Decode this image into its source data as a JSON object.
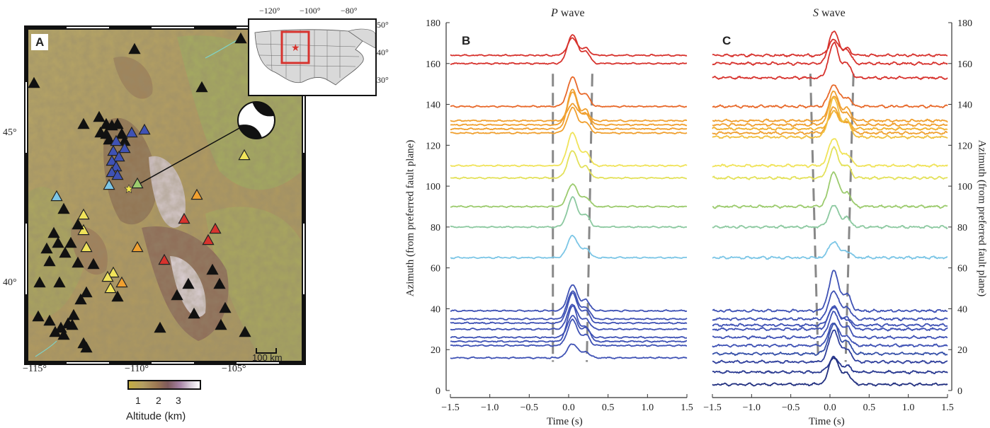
{
  "panel_a": {
    "letter": "A",
    "lon_ticks": [
      "−115°",
      "−110°",
      "−105°"
    ],
    "lat_ticks": [
      "45°",
      "40°"
    ],
    "scale_label": "100 km",
    "colorbar_ticks": [
      "1",
      "2",
      "3"
    ],
    "colorbar_label": "Altitude (km)",
    "colors": {
      "blue": "#3f52b5",
      "cyan": "#7cc6e6",
      "green": "#9ccb6e",
      "yellow": "#f0e35a",
      "orange": "#f0a030",
      "red": "#d7332e",
      "black": "#111111"
    }
  },
  "inset": {
    "lon_ticks": [
      "−120°",
      "−100°",
      "−80°"
    ],
    "lat_ticks": [
      "50°",
      "40°",
      "30°"
    ]
  },
  "panel_b": {
    "letter": "B",
    "title_italic": "P",
    "title_rest": " wave"
  },
  "panel_c": {
    "letter": "C",
    "title_italic": "S",
    "title_rest": " wave"
  },
  "y_axis_label": "Azimuth (from preferred fault plane)",
  "x_axis_label": "Time (s)",
  "chart_data": [
    {
      "type": "line",
      "title": "P wave",
      "xlabel": "Time (s)",
      "ylabel": "Azimuth (from preferred fault plane)",
      "xlim": [
        -1.5,
        1.5
      ],
      "ylim": [
        0,
        180
      ],
      "xticks": [
        "−1.5",
        "−1.0",
        "−0.5",
        "0.0",
        "0.5",
        "1.0",
        "1.5"
      ],
      "yticks": [
        "0",
        "20",
        "40",
        "60",
        "80",
        "100",
        "120",
        "140",
        "160",
        "180"
      ],
      "pulse_center_s": 0.05,
      "dashed_boundaries": {
        "left_top": -0.2,
        "left_bottom": -0.2,
        "right_top": 0.3,
        "right_bottom": 0.23
      },
      "trace_baselines": [
        164,
        160,
        139,
        132,
        130,
        128,
        126,
        110,
        104,
        90,
        80,
        65,
        39,
        35,
        33,
        30,
        26,
        24,
        22,
        16
      ],
      "trace_colors": [
        "#d7332e",
        "#d7332e",
        "#e8692a",
        "#f0a030",
        "#f0a030",
        "#f0a030",
        "#f0a030",
        "#f0e35a",
        "#e3e15a",
        "#9ccb6e",
        "#8cc9a0",
        "#7cc6e6",
        "#3f52b5",
        "#3f52b5",
        "#3f52b5",
        "#3f52b5",
        "#3f52b5",
        "#3f52b5",
        "#3f52b5",
        "#3f52b5"
      ]
    },
    {
      "type": "line",
      "title": "S wave",
      "xlabel": "Time (s)",
      "ylabel": "Azimuth (from preferred fault plane)",
      "xlim": [
        -1.5,
        1.5
      ],
      "ylim": [
        0,
        180
      ],
      "xticks": [
        "−1.5",
        "−1.0",
        "−0.5",
        "0.0",
        "0.5",
        "1.0",
        "1.5"
      ],
      "yticks": [
        "0",
        "20",
        "40",
        "60",
        "80",
        "100",
        "120",
        "140",
        "160",
        "180"
      ],
      "pulse_center_s": 0.05,
      "dashed_boundaries": {
        "left_top": -0.25,
        "left_bottom": -0.15,
        "right_top": 0.3,
        "right_bottom": 0.2
      },
      "trace_baselines": [
        164,
        160,
        153,
        139,
        132,
        130,
        128,
        126,
        124,
        110,
        104,
        90,
        80,
        65,
        39,
        35,
        32,
        30,
        26,
        22,
        18,
        14,
        9,
        3
      ],
      "trace_colors": [
        "#d7332e",
        "#d7332e",
        "#d7332e",
        "#e8692a",
        "#f0a030",
        "#f0a030",
        "#f0b030",
        "#f0a030",
        "#f0c040",
        "#f0e35a",
        "#e3e15a",
        "#9ccb6e",
        "#8cc9a0",
        "#7cc6e6",
        "#3f52b5",
        "#3f52b5",
        "#3f52b5",
        "#3f52b5",
        "#3f52b5",
        "#3f52b5",
        "#3550a8",
        "#2f3f9c",
        "#283890",
        "#223080"
      ]
    }
  ]
}
